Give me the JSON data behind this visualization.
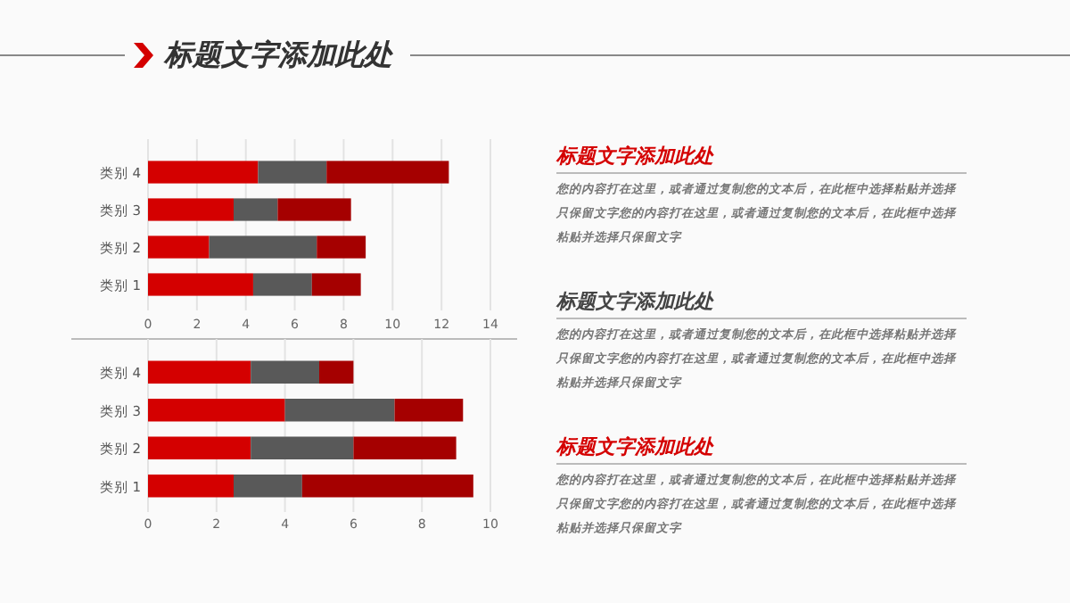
{
  "chart_data": [
    {
      "type": "bar",
      "orientation": "horizontal",
      "stacked": true,
      "title": "标题文字添加此处",
      "categories": [
        "类别 4",
        "类别 3",
        "类别 2",
        "类别 1"
      ],
      "series": [
        {
          "color": "#d40000",
          "values": [
            4.5,
            3.5,
            2.5,
            4.3
          ]
        },
        {
          "color": "#595959",
          "values": [
            2.8,
            1.8,
            4.4,
            2.4
          ]
        },
        {
          "color": "#a50000",
          "values": [
            5,
            3,
            2,
            2
          ]
        }
      ],
      "xlim": [
        0,
        14
      ],
      "xticks": [
        0,
        2,
        4,
        6,
        8,
        10,
        12,
        14
      ],
      "grid": "x"
    },
    {
      "type": "bar",
      "orientation": "horizontal",
      "stacked": true,
      "categories": [
        "类别 4",
        "类别 3",
        "类别 2",
        "类别 1"
      ],
      "series": [
        {
          "color": "#d40000",
          "values": [
            3,
            4,
            3,
            2.5
          ]
        },
        {
          "color": "#595959",
          "values": [
            2,
            3.2,
            3,
            2
          ]
        },
        {
          "color": "#a50000",
          "values": [
            1,
            2,
            3,
            5
          ]
        }
      ],
      "xlim": [
        0,
        10
      ],
      "xticks": [
        0,
        2,
        4,
        6,
        8,
        10
      ],
      "grid": "x"
    },
    {
      "type": "other",
      "annotations": [
        "标题文字添加此处",
        "您的内容打在这里，或者通过复制您的文本后，在此框中选择粘贴并选择只保留文字您的内容打在这里，或者通过复制您的文本后，在此框中选择粘贴并选择只保留文字",
        "标题文字添加此处",
        "您的内容打在这里，或者通过复制您的文本后，在此框中选择粘贴并选择只保留文字您的内容打在这里，或者通过复制您的文本后，在此框中选择粘贴并选择只保留文字",
        "标题文字添加此处",
        "您的内容打在这里，或者通过复制您的文本后，在此框中选择粘贴并选择只保留文字您的内容打在这里，或者通过复制您的文本后，在此框中选择粘贴并选择只保留文字"
      ]
    }
  ]
}
